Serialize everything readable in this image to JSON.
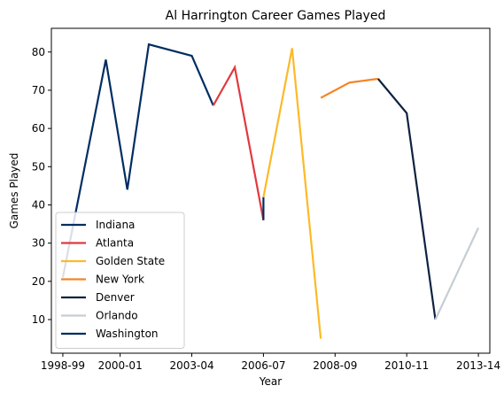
{
  "chart_data": {
    "type": "line",
    "title": "Al Harrington Career Games Played",
    "xlabel": "Year",
    "ylabel": "Games Played",
    "x_tick_labels": [
      "1998-99",
      "2000-01",
      "2003-04",
      "2006-07",
      "2008-09",
      "2010-11",
      "2013-14"
    ],
    "x_tick_positions": [
      0,
      2,
      4.5,
      7,
      9.5,
      12,
      14.5
    ],
    "xlim": [
      -0.4,
      14.9
    ],
    "y_ticks": [
      10,
      20,
      30,
      40,
      50,
      60,
      70,
      80
    ],
    "ylim": [
      1.2,
      86.2
    ],
    "grid": false,
    "legend_position": "lower-left",
    "series": [
      {
        "name": "Indiana",
        "color": "#002D62",
        "points": [
          [
            0,
            21
          ],
          [
            1.5,
            78
          ],
          [
            2.25,
            44
          ],
          [
            3.0,
            82
          ],
          [
            4.5,
            79
          ],
          [
            5.25,
            66
          ]
        ]
      },
      {
        "name": "Atlanta",
        "color": "#E03A3E",
        "points": [
          [
            5.25,
            66
          ],
          [
            6.0,
            76
          ],
          [
            7.0,
            36
          ]
        ]
      },
      {
        "name": "Golden State",
        "color": "#FDB927",
        "points": [
          [
            7.0,
            42
          ],
          [
            8.0,
            81
          ],
          [
            9.0,
            5
          ]
        ]
      },
      {
        "name": "New York",
        "color": "#F58426",
        "points": [
          [
            9.0,
            68
          ],
          [
            10.0,
            72
          ],
          [
            11.0,
            73
          ]
        ]
      },
      {
        "name": "Denver",
        "color": "#0E2240",
        "points": [
          [
            11.0,
            73
          ],
          [
            12.0,
            64
          ],
          [
            13.0,
            10
          ]
        ]
      },
      {
        "name": "Orlando",
        "color": "#C4CED4",
        "points": [
          [
            13.0,
            10
          ],
          [
            14.5,
            34
          ]
        ]
      },
      {
        "name": "Washington",
        "color": "#002B5C",
        "points": [
          [
            7.0,
            36
          ],
          [
            7.0,
            42
          ]
        ]
      }
    ]
  }
}
